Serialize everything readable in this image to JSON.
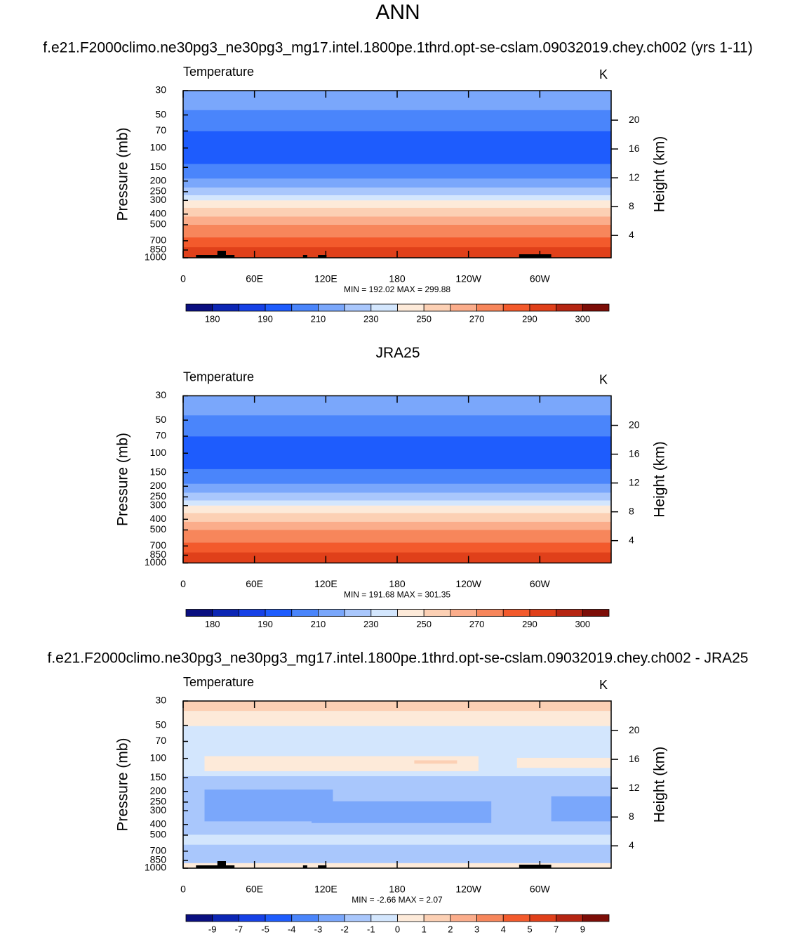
{
  "figure_title": "ANN",
  "chart_data": [
    {
      "type": "contour",
      "title": "f.e21.F2000climo.ne30pg3_ne30pg3_mg17.intel.1800pe.1thrd.opt-se-cslam.09032019.chey.ch002 (yrs 1-11)",
      "subtitle": "Temperature",
      "units": "K",
      "ylabel": "Pressure (mb)",
      "y2label": "Height (km)",
      "log_y": true,
      "ylim": [
        1000,
        30
      ],
      "yticks": [
        30,
        50,
        70,
        100,
        150,
        200,
        250,
        300,
        400,
        500,
        700,
        850,
        1000
      ],
      "y2lim": [
        0.9,
        24.1
      ],
      "y2ticks": [
        4,
        8,
        12,
        16,
        20
      ],
      "xlim": [
        0,
        360
      ],
      "xticks": [
        0,
        {
          "value": 60,
          "label": "60E"
        },
        {
          "value": 120,
          "label": "120E"
        },
        180,
        {
          "value": 240,
          "label": "120W"
        },
        {
          "value": 300,
          "label": "60W"
        }
      ],
      "stats": "MIN = 192.02  MAX = 299.88",
      "colorbar": {
        "labels": [
          180,
          190,
          210,
          230,
          250,
          270,
          290,
          300
        ],
        "label_stride": 2,
        "colors": [
          "#0a0f80",
          "#0c26b4",
          "#1641e6",
          "#1e5cfd",
          "#4a85fb",
          "#7aa7fb",
          "#a9c7fc",
          "#d3e6fd",
          "#fdead9",
          "#fcd0b4",
          "#fbad8b",
          "#f7865b",
          "#f35a2c",
          "#e0401a",
          "#b52512",
          "#7c0d07"
        ]
      }
    },
    {
      "type": "contour",
      "title": "JRA25",
      "subtitle": "Temperature",
      "units": "K",
      "ylabel": "Pressure (mb)",
      "y2label": "Height (km)",
      "log_y": true,
      "ylim": [
        1000,
        30
      ],
      "yticks": [
        30,
        50,
        70,
        100,
        150,
        200,
        250,
        300,
        400,
        500,
        700,
        850,
        1000
      ],
      "y2lim": [
        0.9,
        24.1
      ],
      "y2ticks": [
        4,
        8,
        12,
        16,
        20
      ],
      "xlim": [
        0,
        360
      ],
      "xticks": [
        0,
        {
          "value": 60,
          "label": "60E"
        },
        {
          "value": 120,
          "label": "120E"
        },
        180,
        {
          "value": 240,
          "label": "120W"
        },
        {
          "value": 300,
          "label": "60W"
        }
      ],
      "stats": "MIN = 191.68  MAX = 301.35",
      "colorbar": {
        "labels": [
          180,
          190,
          210,
          230,
          250,
          270,
          290,
          300
        ],
        "label_stride": 2,
        "colors": [
          "#0a0f80",
          "#0c26b4",
          "#1641e6",
          "#1e5cfd",
          "#4a85fb",
          "#7aa7fb",
          "#a9c7fc",
          "#d3e6fd",
          "#fdead9",
          "#fcd0b4",
          "#fbad8b",
          "#f7865b",
          "#f35a2c",
          "#e0401a",
          "#b52512",
          "#7c0d07"
        ]
      }
    },
    {
      "type": "contour_diff",
      "title": "f.e21.F2000climo.ne30pg3_ne30pg3_mg17.intel.1800pe.1thrd.opt-se-cslam.09032019.chey.ch002 - JRA25",
      "subtitle": "Temperature",
      "units": "K",
      "ylabel": "Pressure (mb)",
      "y2label": "Height (km)",
      "log_y": true,
      "ylim": [
        1000,
        30
      ],
      "yticks": [
        30,
        50,
        70,
        100,
        150,
        200,
        250,
        300,
        400,
        500,
        700,
        850,
        1000
      ],
      "y2lim": [
        0.9,
        24.1
      ],
      "y2ticks": [
        4,
        8,
        12,
        16,
        20
      ],
      "xlim": [
        0,
        360
      ],
      "xticks": [
        0,
        {
          "value": 60,
          "label": "60E"
        },
        {
          "value": 120,
          "label": "120E"
        },
        180,
        {
          "value": 240,
          "label": "120W"
        },
        {
          "value": 300,
          "label": "60W"
        }
      ],
      "stats": "MIN =  -2.66  MAX =  2.07",
      "colorbar": {
        "labels": [
          -9,
          -7,
          -5,
          -4,
          -3,
          -2,
          -1,
          0,
          1,
          2,
          3,
          4,
          5,
          7,
          9
        ],
        "label_stride": 1,
        "colors": [
          "#0a0f80",
          "#0c26b4",
          "#1641e6",
          "#1e5cfd",
          "#4a85fb",
          "#7aa7fb",
          "#a9c7fc",
          "#d3e6fd",
          "#fdead9",
          "#fcd0b4",
          "#fbad8b",
          "#f7865b",
          "#f35a2c",
          "#e0401a",
          "#b52512",
          "#7c0d07"
        ]
      }
    }
  ]
}
